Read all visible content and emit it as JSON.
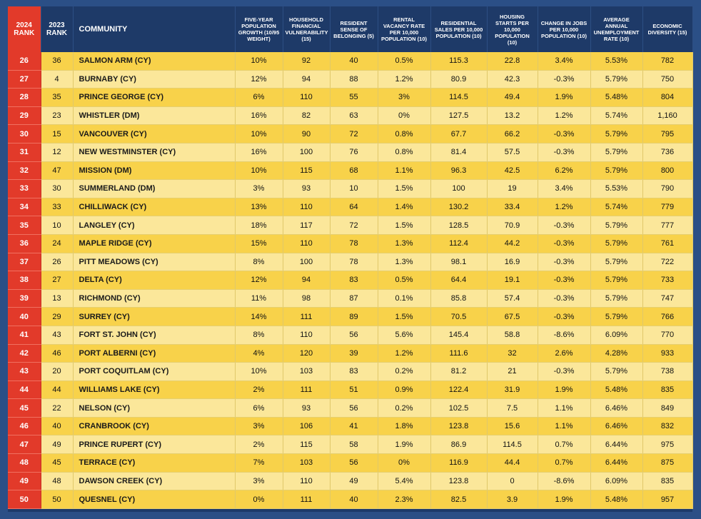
{
  "headers": {
    "rank_2024": "2024 RANK",
    "rank_2023": "2023 RANK",
    "community": "COMMUNITY",
    "pop_growth": "FIVE-YEAR POPULATION GROWTH (10/95 WEIGHT)",
    "fin_vuln": "HOUSEHOLD FINANCIAL VULNERABILITY (15)",
    "belonging": "RESIDENT SENSE OF BELONGING (5)",
    "vacancy": "RENTAL VACANCY RATE PER 10,000 POPULATION (10)",
    "sales": "RESIDENTIAL SALES PER 10,000 POPULATION (10)",
    "starts": "HOUSING STARTS PER 10,000 POPULATION (10)",
    "jobs": "CHANGE IN JOBS PER 10,000 POPULATION (10)",
    "unemployment": "AVERAGE ANNUAL UNEMPLOYMENT RATE (10)",
    "diversity": "ECONOMIC DIVERSITY (15)"
  },
  "rows": [
    [
      "26",
      "36",
      "SALMON ARM (CY)",
      "10%",
      "92",
      "40",
      "0.5%",
      "115.3",
      "22.8",
      "3.4%",
      "5.53%",
      "782"
    ],
    [
      "27",
      "4",
      "BURNABY (CY)",
      "12%",
      "94",
      "88",
      "1.2%",
      "80.9",
      "42.3",
      "-0.3%",
      "5.79%",
      "750"
    ],
    [
      "28",
      "35",
      "PRINCE GEORGE (CY)",
      "6%",
      "110",
      "55",
      "3%",
      "114.5",
      "49.4",
      "1.9%",
      "5.48%",
      "804"
    ],
    [
      "29",
      "23",
      "WHISTLER (DM)",
      "16%",
      "82",
      "63",
      "0%",
      "127.5",
      "13.2",
      "1.2%",
      "5.74%",
      "1,160"
    ],
    [
      "30",
      "15",
      "VANCOUVER (CY)",
      "10%",
      "90",
      "72",
      "0.8%",
      "67.7",
      "66.2",
      "-0.3%",
      "5.79%",
      "795"
    ],
    [
      "31",
      "12",
      "NEW WESTMINSTER (CY)",
      "16%",
      "100",
      "76",
      "0.8%",
      "81.4",
      "57.5",
      "-0.3%",
      "5.79%",
      "736"
    ],
    [
      "32",
      "47",
      "MISSION (DM)",
      "10%",
      "115",
      "68",
      "1.1%",
      "96.3",
      "42.5",
      "6.2%",
      "5.79%",
      "800"
    ],
    [
      "33",
      "30",
      "SUMMERLAND (DM)",
      "3%",
      "93",
      "10",
      "1.5%",
      "100",
      "19",
      "3.4%",
      "5.53%",
      "790"
    ],
    [
      "34",
      "33",
      "CHILLIWACK (CY)",
      "13%",
      "110",
      "64",
      "1.4%",
      "130.2",
      "33.4",
      "1.2%",
      "5.74%",
      "779"
    ],
    [
      "35",
      "10",
      "LANGLEY (CY)",
      "18%",
      "117",
      "72",
      "1.5%",
      "128.5",
      "70.9",
      "-0.3%",
      "5.79%",
      "777"
    ],
    [
      "36",
      "24",
      "MAPLE RIDGE (CY)",
      "15%",
      "110",
      "78",
      "1.3%",
      "112.4",
      "44.2",
      "-0.3%",
      "5.79%",
      "761"
    ],
    [
      "37",
      "26",
      "PITT MEADOWS (CY)",
      "8%",
      "100",
      "78",
      "1.3%",
      "98.1",
      "16.9",
      "-0.3%",
      "5.79%",
      "722"
    ],
    [
      "38",
      "27",
      "DELTA (CY)",
      "12%",
      "94",
      "83",
      "0.5%",
      "64.4",
      "19.1",
      "-0.3%",
      "5.79%",
      "733"
    ],
    [
      "39",
      "13",
      "RICHMOND (CY)",
      "11%",
      "98",
      "87",
      "0.1%",
      "85.8",
      "57.4",
      "-0.3%",
      "5.79%",
      "747"
    ],
    [
      "40",
      "29",
      "SURREY (CY)",
      "14%",
      "111",
      "89",
      "1.5%",
      "70.5",
      "67.5",
      "-0.3%",
      "5.79%",
      "766"
    ],
    [
      "41",
      "43",
      "FORT ST. JOHN (CY)",
      "8%",
      "110",
      "56",
      "5.6%",
      "145.4",
      "58.8",
      "-8.6%",
      "6.09%",
      "770"
    ],
    [
      "42",
      "46",
      "PORT ALBERNI (CY)",
      "4%",
      "120",
      "39",
      "1.2%",
      "111.6",
      "32",
      "2.6%",
      "4.28%",
      "933"
    ],
    [
      "43",
      "20",
      "PORT COQUITLAM (CY)",
      "10%",
      "103",
      "83",
      "0.2%",
      "81.2",
      "21",
      "-0.3%",
      "5.79%",
      "738"
    ],
    [
      "44",
      "44",
      "WILLIAMS LAKE (CY)",
      "2%",
      "111",
      "51",
      "0.9%",
      "122.4",
      "31.9",
      "1.9%",
      "5.48%",
      "835"
    ],
    [
      "45",
      "22",
      "NELSON (CY)",
      "6%",
      "93",
      "56",
      "0.2%",
      "102.5",
      "7.5",
      "1.1%",
      "6.46%",
      "849"
    ],
    [
      "46",
      "40",
      "CRANBROOK (CY)",
      "3%",
      "106",
      "41",
      "1.8%",
      "123.8",
      "15.6",
      "1.1%",
      "6.46%",
      "832"
    ],
    [
      "47",
      "49",
      "PRINCE RUPERT (CY)",
      "2%",
      "115",
      "58",
      "1.9%",
      "86.9",
      "114.5",
      "0.7%",
      "6.44%",
      "975"
    ],
    [
      "48",
      "45",
      "TERRACE (CY)",
      "7%",
      "103",
      "56",
      "0%",
      "116.9",
      "44.4",
      "0.7%",
      "6.44%",
      "875"
    ],
    [
      "49",
      "48",
      "DAWSON CREEK (CY)",
      "3%",
      "110",
      "49",
      "5.4%",
      "123.8",
      "0",
      "-8.6%",
      "6.09%",
      "835"
    ],
    [
      "50",
      "50",
      "QUESNEL (CY)",
      "0%",
      "111",
      "40",
      "2.3%",
      "82.5",
      "3.9",
      "1.9%",
      "5.48%",
      "957"
    ]
  ]
}
